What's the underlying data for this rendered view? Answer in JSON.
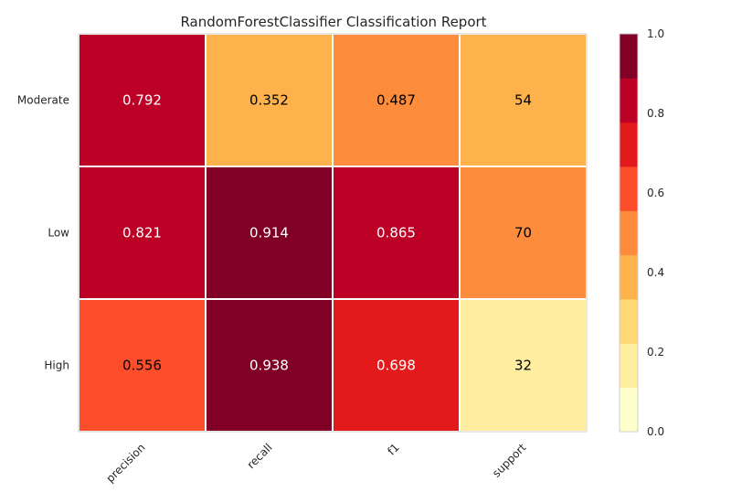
{
  "chart_data": {
    "type": "heatmap",
    "title": "RandomForestClassifier Classification Report",
    "rows": [
      "Moderate",
      "Low",
      "High"
    ],
    "columns": [
      "precision",
      "recall",
      "f1",
      "support"
    ],
    "cells": [
      {
        "text": "0.792",
        "scaled": 0.792
      },
      {
        "text": "0.352",
        "scaled": 0.352
      },
      {
        "text": "0.487",
        "scaled": 0.487
      },
      {
        "text": "54",
        "scaled": 0.35
      },
      {
        "text": "0.821",
        "scaled": 0.821
      },
      {
        "text": "0.914",
        "scaled": 0.914
      },
      {
        "text": "0.865",
        "scaled": 0.865
      },
      {
        "text": "70",
        "scaled": 0.45
      },
      {
        "text": "0.556",
        "scaled": 0.556
      },
      {
        "text": "0.938",
        "scaled": 0.938
      },
      {
        "text": "0.698",
        "scaled": 0.698
      },
      {
        "text": "32",
        "scaled": 0.21
      }
    ],
    "colorbar": {
      "range": [
        0.0,
        1.0
      ],
      "ticks": [
        "0.0",
        "0.2",
        "0.4",
        "0.6",
        "0.8",
        "1.0"
      ],
      "colors": [
        "#ffffcc",
        "#ffeda0",
        "#fed976",
        "#feb24c",
        "#fd8d3c",
        "#fc4e2a",
        "#e31a1c",
        "#bd0026",
        "#800026"
      ]
    },
    "grid": false,
    "legend": "right colorbar"
  }
}
